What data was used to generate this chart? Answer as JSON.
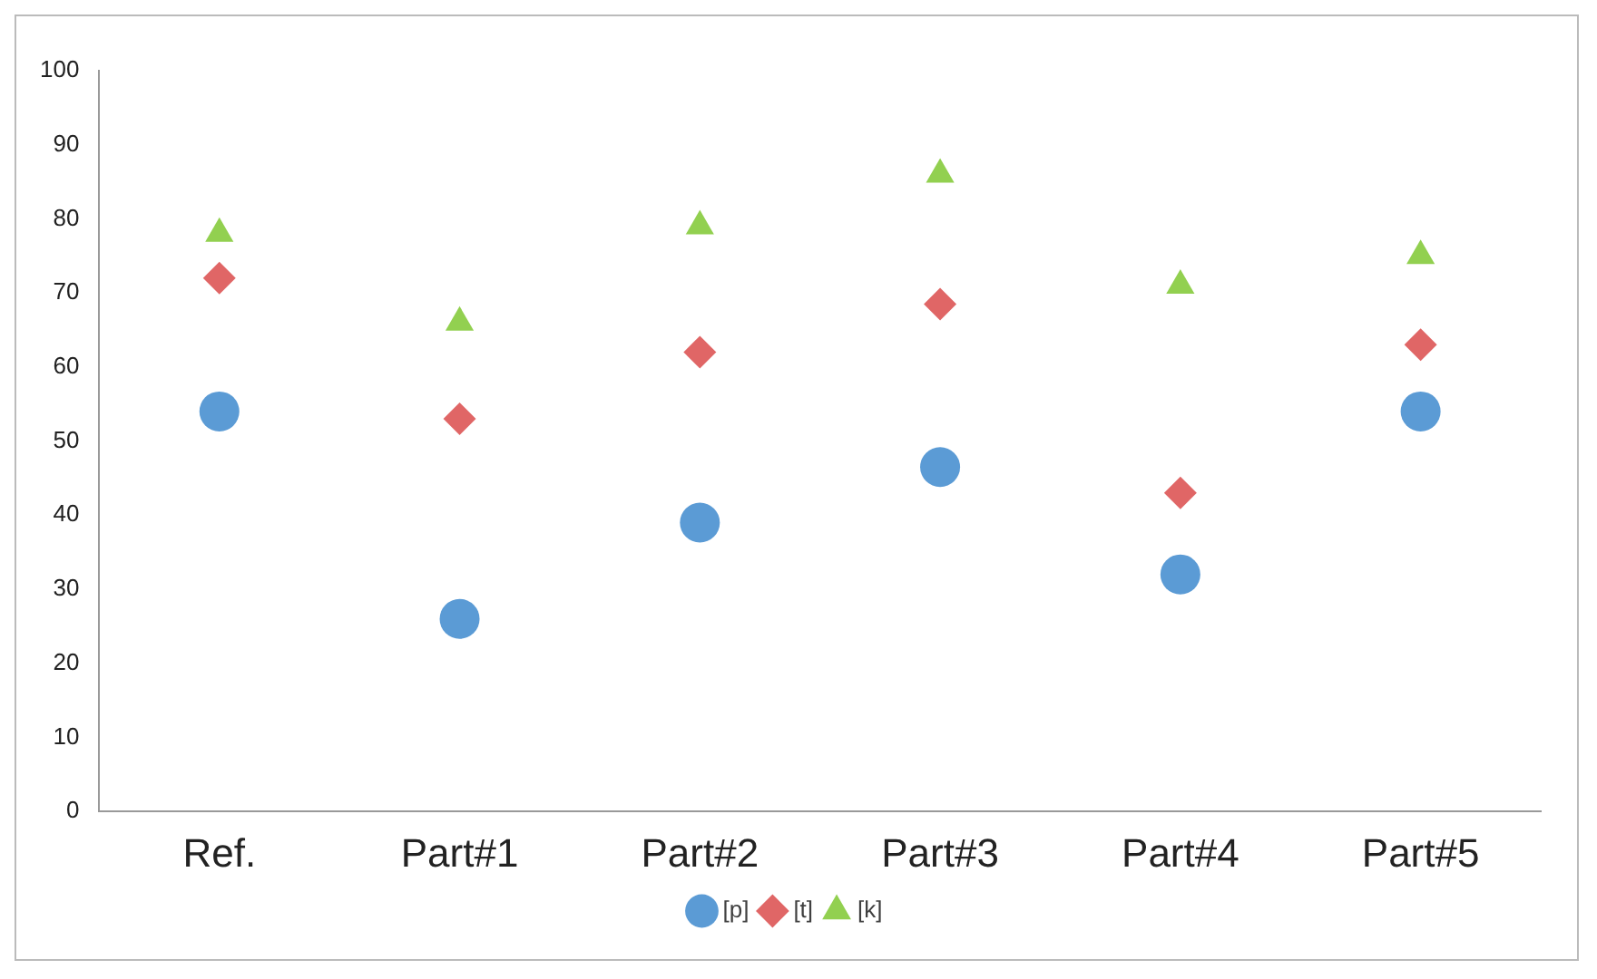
{
  "chart_data": {
    "type": "scatter",
    "categories": [
      "Ref.",
      "Part#1",
      "Part#2",
      "Part#3",
      "Part#4",
      "Part#5"
    ],
    "series": [
      {
        "name": "[p]",
        "color": "#5b9bd5",
        "marker": "circle",
        "values": [
          54,
          26,
          39,
          46.5,
          32,
          54
        ]
      },
      {
        "name": "[t]",
        "color": "#e06666",
        "marker": "diamond",
        "values": [
          72,
          53,
          62,
          68.5,
          43,
          63
        ]
      },
      {
        "name": "[k]",
        "color": "#92d050",
        "marker": "triangle",
        "values": [
          78,
          66,
          79,
          86,
          71,
          75
        ]
      }
    ],
    "ylim": [
      0,
      100
    ],
    "yticks": [
      0,
      10,
      20,
      30,
      40,
      50,
      60,
      70,
      80,
      90,
      100
    ],
    "grid": false,
    "legend": "bottom"
  }
}
